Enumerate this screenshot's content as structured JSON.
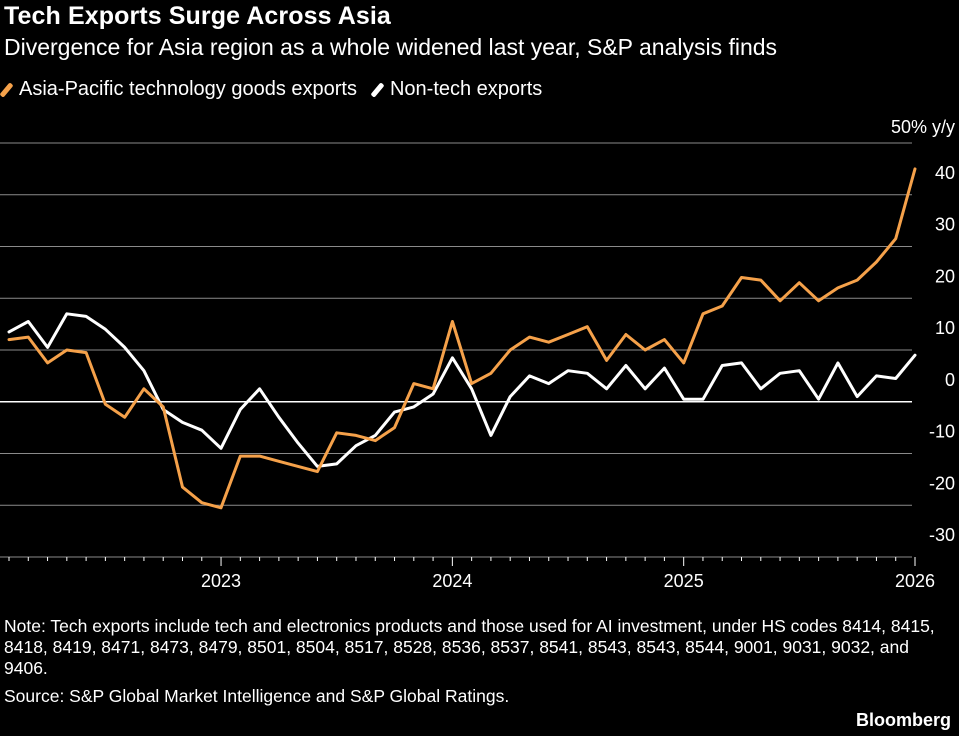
{
  "chart_data": {
    "type": "line",
    "title": "Tech Exports Surge Across Asia",
    "subtitle": "Divergence for Asia region as a whole widened last year, S&P analysis finds",
    "ylabel": "50% y/y",
    "ylim": [
      -30,
      50
    ],
    "yticks": [
      -30,
      -20,
      -10,
      0,
      10,
      20,
      30,
      40
    ],
    "ytick_labels": [
      "-30",
      "-20",
      "-10",
      "0",
      "10",
      "20",
      "30",
      "40"
    ],
    "xticks": [
      {
        "label": "2023",
        "date": "2023-01"
      },
      {
        "label": "2024",
        "date": "2024-01"
      },
      {
        "label": "2025",
        "date": "2025-01"
      },
      {
        "label": "2026",
        "date": "2026-01"
      }
    ],
    "xlim": [
      "2022-02",
      "2026-01"
    ],
    "grid": true,
    "legend_position": "top-left",
    "series": [
      {
        "name": "Asia-Pacific technology goods exports",
        "color": "#F5A14A",
        "x": [
          "2022-02",
          "2022-03",
          "2022-04",
          "2022-05",
          "2022-06",
          "2022-07",
          "2022-08",
          "2022-09",
          "2022-10",
          "2022-11",
          "2022-12",
          "2023-01",
          "2023-02",
          "2023-03",
          "2023-04",
          "2023-05",
          "2023-06",
          "2023-07",
          "2023-08",
          "2023-09",
          "2023-10",
          "2023-11",
          "2023-12",
          "2024-01",
          "2024-02",
          "2024-03",
          "2024-04",
          "2024-05",
          "2024-06",
          "2024-07",
          "2024-08",
          "2024-09",
          "2024-10",
          "2024-11",
          "2024-12",
          "2025-01",
          "2025-02",
          "2025-03",
          "2025-04",
          "2025-05",
          "2025-06",
          "2025-07",
          "2025-08",
          "2025-09",
          "2025-10",
          "2025-11",
          "2025-12",
          "2026-01"
        ],
        "values": [
          12,
          12.5,
          7.5,
          10,
          9.5,
          -0.5,
          -3,
          2.5,
          -1,
          -16.5,
          -19.5,
          -20.5,
          -10.5,
          -10.5,
          -11.5,
          -12.5,
          -13.5,
          -6,
          -6.5,
          -7.5,
          -5,
          3.5,
          2.5,
          15.5,
          3.5,
          5.5,
          10,
          12.5,
          11.5,
          13,
          14.5,
          8,
          13,
          10,
          12,
          7.5,
          17,
          18.5,
          24,
          23.5,
          19.5,
          23,
          19.5,
          22,
          23.5,
          27,
          31.5,
          45
        ]
      },
      {
        "name": "Non-tech exports",
        "color": "#FFFFFF",
        "x": [
          "2022-02",
          "2022-03",
          "2022-04",
          "2022-05",
          "2022-06",
          "2022-07",
          "2022-08",
          "2022-09",
          "2022-10",
          "2022-11",
          "2022-12",
          "2023-01",
          "2023-02",
          "2023-03",
          "2023-04",
          "2023-05",
          "2023-06",
          "2023-07",
          "2023-08",
          "2023-09",
          "2023-10",
          "2023-11",
          "2023-12",
          "2024-01",
          "2024-02",
          "2024-03",
          "2024-04",
          "2024-05",
          "2024-06",
          "2024-07",
          "2024-08",
          "2024-09",
          "2024-10",
          "2024-11",
          "2024-12",
          "2025-01",
          "2025-02",
          "2025-03",
          "2025-04",
          "2025-05",
          "2025-06",
          "2025-07",
          "2025-08",
          "2025-09",
          "2025-10",
          "2025-11",
          "2025-12",
          "2026-01"
        ],
        "values": [
          13.5,
          15.5,
          10.5,
          17,
          16.5,
          14,
          10.5,
          6,
          -1.5,
          -4,
          -5.5,
          -9,
          -1.5,
          2.5,
          -3,
          -8,
          -12.5,
          -12,
          -8.5,
          -6.5,
          -2,
          -1,
          1.5,
          8.5,
          2.5,
          -6.5,
          1,
          5,
          3.5,
          6,
          5.5,
          2.5,
          7,
          2.5,
          6.5,
          0.5,
          0.5,
          7,
          7.5,
          2.5,
          5.5,
          6,
          0.5,
          7.5,
          1,
          5,
          4.5,
          9
        ]
      }
    ]
  },
  "note": "Note: Tech exports include tech and electronics products and those used for AI investment, under HS codes 8414, 8415, 8418, 8419, 8471, 8473, 8479, 8501, 8504, 8517, 8528, 8536, 8537, 8541, 8543, 8543, 8544, 9001, 9031, 9032, and 9406.",
  "source": "Source: S&P Global Market Intelligence and S&P Global Ratings.",
  "brand": "Bloomberg"
}
